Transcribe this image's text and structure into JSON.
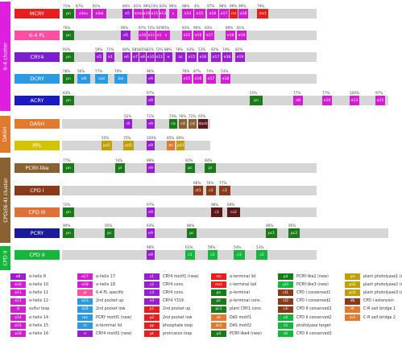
{
  "clusters": [
    {
      "label": "6-4 cluster",
      "color": "#e01ee0",
      "top": 2,
      "height": 136
    },
    {
      "label": "DASH",
      "color": "#e07a2e",
      "top": 144,
      "height": 46
    },
    {
      "label": "CPD/(6-4) cluster",
      "color": "#8a6232",
      "top": 196,
      "height": 106
    },
    {
      "label": "CPD II",
      "color": "#16b53d",
      "top": 306,
      "height": 30
    }
  ],
  "rows": [
    {
      "name": "MCRY",
      "color": "#e81e1e",
      "y": 11,
      "trackX": 77,
      "trackW": 316,
      "motifs": [
        {
          "label": "pn",
          "color": "#1a7a1a",
          "x": 78,
          "w": 14,
          "pct": "71%"
        },
        {
          "label": "e3su",
          "color": "#d01ed0",
          "x": 94,
          "w": 19,
          "pct": "87%"
        },
        {
          "label": "e3al",
          "color": "#d01ed0",
          "x": 115,
          "w": 17,
          "pct": "81%"
        },
        {
          "label": "e5",
          "color": "#9a1ed0",
          "x": 152,
          "w": 12,
          "pct": "84%"
        },
        {
          "label": "nrsn",
          "color": "#d01ed0",
          "x": 166,
          "w": 11,
          "pct": "81%"
        },
        {
          "label": "e10",
          "color": "#d01ed0",
          "x": 178,
          "w": 8,
          "pct": "99%"
        },
        {
          "label": "e11",
          "color": "#d01ed0",
          "x": 187,
          "w": 10,
          "pct": "74%"
        },
        {
          "label": "e12",
          "color": "#d01ed0",
          "x": 198,
          "w": 8,
          "pct": "83%"
        },
        {
          "label": "s",
          "color": "#d01ed0",
          "x": 210,
          "w": 10,
          "pct": "96%"
        },
        {
          "label": "e14",
          "color": "#d01ed0",
          "x": 226,
          "w": 14,
          "pct": "98%"
        },
        {
          "label": "e15",
          "color": "#d01ed0",
          "x": 241,
          "w": 14,
          "pct": "4%"
        },
        {
          "label": "e16",
          "color": "#d01ed0",
          "x": 257,
          "w": 14,
          "pct": "97%"
        },
        {
          "label": "e17",
          "color": "#d01ed0",
          "x": 272,
          "w": 12,
          "pct": "98%"
        },
        {
          "label": "ml",
          "color": "#e81e1e",
          "x": 285,
          "w": 10,
          "pct": "99%"
        },
        {
          "label": "e18",
          "color": "#d01ed0",
          "x": 296,
          "w": 12,
          "pct": "99%"
        },
        {
          "label": "mct",
          "color": "#e81e1e",
          "x": 319,
          "w": 14,
          "pct": "79%"
        }
      ]
    },
    {
      "name": "6-4 PL",
      "color": "#ff4fa3",
      "y": 38,
      "trackX": 77,
      "trackW": 316,
      "motifs": [
        {
          "label": "pn",
          "color": "#1a7a1a",
          "x": 78,
          "w": 14,
          "pct": "76%"
        },
        {
          "label": "e5",
          "color": "#9a1ed0",
          "x": 150,
          "w": 12,
          "pct": "90%"
        },
        {
          "label": "e10",
          "color": "#d01ed0",
          "x": 172,
          "w": 10,
          "pct": "97%"
        },
        {
          "label": "e11",
          "color": "#d01ed0",
          "x": 183,
          "w": 10,
          "pct": "72%"
        },
        {
          "label": "e12",
          "color": "#d01ed0",
          "x": 194,
          "w": 10,
          "pct": "92%"
        },
        {
          "label": "s",
          "color": "#d01ed0",
          "x": 201,
          "w": 10,
          "pct": "75%"
        },
        {
          "label": "e15",
          "color": "#d01ed0",
          "x": 226,
          "w": 12,
          "pct": "93%"
        },
        {
          "label": "e16",
          "color": "#d01ed0",
          "x": 240,
          "w": 12,
          "pct": "96%"
        },
        {
          "label": "e17",
          "color": "#d01ed0",
          "x": 254,
          "w": 12,
          "pct": "93%"
        },
        {
          "label": "e18",
          "color": "#d01ed0",
          "x": 280,
          "w": 12,
          "pct": "89%"
        },
        {
          "label": "e19",
          "color": "#d01ed0",
          "x": 294,
          "w": 12,
          "pct": "81%"
        }
      ]
    },
    {
      "name": "CRY4",
      "color": "#7b1ed0",
      "y": 65,
      "trackX": 77,
      "trackW": 316,
      "motifs": [
        {
          "label": "pn",
          "color": "#1a7a1a",
          "x": 78,
          "w": 14,
          "pct": "91%"
        },
        {
          "label": "e5",
          "color": "#9a1ed0",
          "x": 118,
          "w": 10,
          "pct": "59%"
        },
        {
          "label": "e1",
          "color": "#9a1ed0",
          "x": 132,
          "w": 10,
          "pct": "71%"
        },
        {
          "label": "e6",
          "color": "#9a1ed0",
          "x": 152,
          "w": 10,
          "pct": "84%"
        },
        {
          "label": "e7",
          "color": "#9a1ed0",
          "x": 164,
          "w": 8,
          "pct": "68%"
        },
        {
          "label": "e8",
          "color": "#9a1ed0",
          "x": 173,
          "w": 8,
          "pct": "65%"
        },
        {
          "label": "e10",
          "color": "#9a1ed0",
          "x": 182,
          "w": 10,
          "pct": "81%"
        },
        {
          "label": "e11",
          "color": "#9a1ed0",
          "x": 193,
          "w": 10,
          "pct": "72%"
        },
        {
          "label": "e",
          "color": "#9a1ed0",
          "x": 204,
          "w": 10,
          "pct": "88%"
        },
        {
          "label": "ss",
          "color": "#9a1ed0",
          "x": 218,
          "w": 12,
          "pct": "78%"
        },
        {
          "label": "e15",
          "color": "#9a1ed0",
          "x": 232,
          "w": 12,
          "pct": "63%"
        },
        {
          "label": "e16",
          "color": "#9a1ed0",
          "x": 246,
          "w": 12,
          "pct": "53%"
        },
        {
          "label": "e17",
          "color": "#9a1ed0",
          "x": 262,
          "w": 12,
          "pct": "92%"
        },
        {
          "label": "e18",
          "color": "#9a1ed0",
          "x": 276,
          "w": 12,
          "pct": "74%"
        },
        {
          "label": "e19",
          "color": "#9a1ed0",
          "x": 292,
          "w": 12,
          "pct": "81%"
        }
      ]
    },
    {
      "name": "DCRY",
      "color": "#2c9ae0",
      "y": 92,
      "trackX": 77,
      "trackW": 316,
      "motifs": [
        {
          "label": "pn",
          "color": "#1a7a1a",
          "x": 78,
          "w": 14,
          "pct": "78%"
        },
        {
          "label": "sdl",
          "color": "#2c9ae0",
          "x": 96,
          "w": 16,
          "pct": "56%"
        },
        {
          "label": "ssd",
          "color": "#2c9ae0",
          "x": 118,
          "w": 16,
          "pct": "77%"
        },
        {
          "label": "bsl",
          "color": "#2c9ae0",
          "x": 142,
          "w": 16,
          "pct": "70%"
        },
        {
          "label": "e9",
          "color": "#9a1ed0",
          "x": 182,
          "w": 10,
          "pct": "96%"
        },
        {
          "label": "e15",
          "color": "#d01ed0",
          "x": 226,
          "w": 12,
          "pct": "76%"
        },
        {
          "label": "e16",
          "color": "#d01ed0",
          "x": 240,
          "w": 12,
          "pct": "87%"
        },
        {
          "label": "e17",
          "color": "#d01ed0",
          "x": 256,
          "w": 12,
          "pct": "74%"
        },
        {
          "label": "e18",
          "color": "#d01ed0",
          "x": 274,
          "w": 12,
          "pct": "53%"
        }
      ]
    },
    {
      "name": "ACRY",
      "color": "#1a1ac0",
      "y": 119,
      "trackX": 77,
      "trackW": 405,
      "motifs": [
        {
          "label": "pn",
          "color": "#1a7a1a",
          "x": 78,
          "w": 14,
          "pct": "63%"
        },
        {
          "label": "e9",
          "color": "#9a1ed0",
          "x": 182,
          "w": 10,
          "pct": "97%"
        },
        {
          "label": "pn",
          "color": "#1a7a1a",
          "x": 310,
          "w": 16,
          "pct": "55%"
        },
        {
          "label": "e8",
          "color": "#d01ed0",
          "x": 364,
          "w": 12,
          "pct": "77%"
        },
        {
          "label": "e10",
          "color": "#d01ed0",
          "x": 400,
          "w": 12,
          "pct": "77%"
        },
        {
          "label": "e13",
          "color": "#d01ed0",
          "x": 434,
          "w": 12,
          "pct": "100%"
        },
        {
          "label": "e15",
          "color": "#d01ed0",
          "x": 466,
          "w": 12,
          "pct": "97%"
        }
      ]
    },
    {
      "name": "DASH",
      "color": "#e07a2e",
      "y": 148,
      "trackX": 77,
      "trackW": 184,
      "motifs": [
        {
          "label": "dl",
          "color": "#9a1ed0",
          "x": 154,
          "w": 10,
          "pct": "52%"
        },
        {
          "label": "e9",
          "color": "#9a1ed0",
          "x": 182,
          "w": 10,
          "pct": "71%"
        },
        {
          "label": "ca",
          "color": "#1a7a1a",
          "x": 210,
          "w": 10,
          "pct": "73%"
        },
        {
          "label": "cd",
          "color": "#8a6232",
          "x": 222,
          "w": 10,
          "pct": "76%"
        },
        {
          "label": "cd",
          "color": "#8a6232",
          "x": 234,
          "w": 10,
          "pct": "72%"
        },
        {
          "label": "dash",
          "color": "#5a1a1a",
          "x": 246,
          "w": 12,
          "pct": "65%"
        }
      ]
    },
    {
      "name": "PPL",
      "color": "#d4c400",
      "y": 175,
      "trackX": 77,
      "trackW": 184,
      "motifs": [
        {
          "label": "pd1",
          "color": "#c0a000",
          "x": 126,
          "w": 13,
          "pct": "55%"
        },
        {
          "label": "pd2",
          "color": "#c0a000",
          "x": 153,
          "w": 13,
          "pct": "75%"
        },
        {
          "label": "e9",
          "color": "#9a1ed0",
          "x": 182,
          "w": 10,
          "pct": "100%"
        },
        {
          "label": "ds",
          "color": "#e07a2e",
          "x": 207,
          "w": 10,
          "pct": "65%"
        },
        {
          "label": "pd3",
          "color": "#c0a000",
          "x": 219,
          "w": 10,
          "pct": "80%"
        }
      ]
    },
    {
      "name": "PCRY-like",
      "color": "#8a6232",
      "y": 203,
      "trackX": 77,
      "trackW": 316,
      "motifs": [
        {
          "label": "pn",
          "color": "#1a7a1a",
          "x": 78,
          "w": 14,
          "pct": "77%"
        },
        {
          "label": "pl",
          "color": "#1a7a1a",
          "x": 143,
          "w": 12,
          "pct": "74%"
        },
        {
          "label": "e9",
          "color": "#9a1ed0",
          "x": 182,
          "w": 10,
          "pct": "99%"
        },
        {
          "label": "pc",
          "color": "#1a7a1a",
          "x": 230,
          "w": 12,
          "pct": "92%"
        },
        {
          "label": "pl",
          "color": "#1a7a1a",
          "x": 254,
          "w": 14,
          "pct": "94%"
        }
      ]
    },
    {
      "name": "CPD I",
      "color": "#8a3a1a",
      "y": 231,
      "trackX": 77,
      "trackW": 316,
      "motifs": [
        {
          "label": "ct1",
          "color": "#8a3a1a",
          "x": 240,
          "w": 12,
          "pct": "66%"
        },
        {
          "label": "c2",
          "color": "#8a3a1a",
          "x": 256,
          "w": 12,
          "pct": "76%"
        },
        {
          "label": "c3",
          "color": "#8a3a1a",
          "x": 272,
          "w": 14,
          "pct": "77%"
        }
      ]
    },
    {
      "name": "CPD III",
      "color": "#e0703a",
      "y": 258,
      "trackX": 77,
      "trackW": 316,
      "motifs": [
        {
          "label": "pn",
          "color": "#1a7a1a",
          "x": 78,
          "w": 14,
          "pct": "72%"
        },
        {
          "label": "e9",
          "color": "#9a1ed0",
          "x": 182,
          "w": 10,
          "pct": "97%"
        },
        {
          "label": "c3",
          "color": "#5a1a1a",
          "x": 262,
          "w": 14,
          "pct": "96%"
        },
        {
          "label": "cs2",
          "color": "#5a1a1a",
          "x": 282,
          "w": 16,
          "pct": "69%"
        }
      ]
    },
    {
      "name": "PCRY",
      "color": "#1a1a9a",
      "y": 284,
      "trackX": 77,
      "trackW": 405,
      "motifs": [
        {
          "label": "pn",
          "color": "#1a7a1a",
          "x": 78,
          "w": 14,
          "pct": "90%"
        },
        {
          "label": "pc",
          "color": "#1a7a1a",
          "x": 130,
          "w": 12,
          "pct": "95%"
        },
        {
          "label": "e9",
          "color": "#9a1ed0",
          "x": 182,
          "w": 10,
          "pct": "93%"
        },
        {
          "label": "pc",
          "color": "#1a7a1a",
          "x": 232,
          "w": 12,
          "pct": "86%"
        },
        {
          "label": "pc1",
          "color": "#1a7a1a",
          "x": 330,
          "w": 14,
          "pct": "90%"
        },
        {
          "label": "pc2",
          "color": "#1a7a1a",
          "x": 358,
          "w": 14,
          "pct": "95%"
        }
      ]
    },
    {
      "name": "CPD II",
      "color": "#16b53d",
      "y": 311,
      "trackX": 77,
      "trackW": 316,
      "motifs": [
        {
          "label": "e9",
          "color": "#9a1ed0",
          "x": 182,
          "w": 10,
          "pct": "98%"
        },
        {
          "label": "c1",
          "color": "#16b53d",
          "x": 230,
          "w": 12,
          "pct": "61%"
        },
        {
          "label": "c2",
          "color": "#16b53d",
          "x": 258,
          "w": 12,
          "pct": "59%"
        },
        {
          "label": "c3",
          "color": "#16b53d",
          "x": 290,
          "w": 14,
          "pct": "54%"
        },
        {
          "label": "c2",
          "color": "#16b53d",
          "x": 318,
          "w": 14,
          "pct": "53%"
        }
      ]
    }
  ],
  "legend": [
    {
      "code": "e8",
      "color": "#9a1ed0",
      "label": "α-helix 8"
    },
    {
      "code": "e10",
      "color": "#d01ed0",
      "label": "α-helix 10"
    },
    {
      "code": "e11",
      "color": "#d01ed0",
      "label": "α-helix 11"
    },
    {
      "code": "e12",
      "color": "#d01ed0",
      "label": "α-helix 12"
    },
    {
      "code": "sl",
      "color": "#d01ed0",
      "label": "sulfur loop"
    },
    {
      "code": "e14",
      "color": "#d01ed0",
      "label": "α-helix 14"
    },
    {
      "code": "e15",
      "color": "#d01ed0",
      "label": "α-helix 15"
    },
    {
      "code": "e16",
      "color": "#d01ed0",
      "label": "α-helix 16"
    },
    {
      "code": "e17",
      "color": "#d01ed0",
      "label": "α-helix 17"
    },
    {
      "code": "e18",
      "color": "#d01ed0",
      "label": "α-helix 18"
    },
    {
      "code": "pl",
      "color": "#ff4fa3",
      "label": "6-4 PL specific"
    },
    {
      "code": "e23",
      "color": "#2c9ae0",
      "label": "2nd pocket up"
    },
    {
      "code": "e24",
      "color": "#2c9ae0",
      "label": "2nd pocket low"
    },
    {
      "code": "rec",
      "color": "#2c9ae0",
      "label": "PCRY motif1 (new)"
    },
    {
      "code": "ct",
      "color": "#2c9ae0",
      "label": "α-terminal lid"
    },
    {
      "code": "rr",
      "color": "#9a1ed0",
      "label": "CRY4 motif2 (new)"
    },
    {
      "code": "c1",
      "color": "#9a1ed0",
      "label": "CRY4 motif1 (new)"
    },
    {
      "code": "c2",
      "color": "#9a1ed0",
      "label": "CRY4 cons."
    },
    {
      "code": "c3",
      "color": "#9a1ed0",
      "label": "CRY4 cons."
    },
    {
      "code": "e3",
      "color": "#9a1ed0",
      "label": "CRY4 Y319"
    },
    {
      "code": "p1",
      "color": "#e81e1e",
      "label": "2nd pocket up"
    },
    {
      "code": "p2",
      "color": "#e81e1e",
      "label": "2nd pocket low"
    },
    {
      "code": "pp",
      "color": "#e81e1e",
      "label": "phosphate loop"
    },
    {
      "code": "pt",
      "color": "#e81e1e",
      "label": "protrusion loop"
    },
    {
      "code": "mc",
      "color": "#e81e1e",
      "label": "α-terminal lid"
    },
    {
      "code": "mct",
      "color": "#e81e1e",
      "label": "c-terminal tail"
    },
    {
      "code": "pn",
      "color": "#1a7a1a",
      "label": "p-terminal"
    },
    {
      "code": "pc",
      "color": "#1a7a1a",
      "label": "p-terminal cons."
    },
    {
      "code": "pc1",
      "color": "#1a7a1a",
      "label": "plant CRY1 cons."
    },
    {
      "code": "ds",
      "color": "#e07a2e",
      "label": "DAS motif1"
    },
    {
      "code": "ds2",
      "color": "#e07a2e",
      "label": "DAS motif2"
    },
    {
      "code": "p3",
      "color": "#1a7a1a",
      "label": "PCRY-like4 (new)"
    },
    {
      "code": "p4",
      "color": "#1a7a1a",
      "label": "PCRY-like2 (new)"
    },
    {
      "code": "pl3",
      "color": "#16b53d",
      "label": "PCRY-like3 (new)"
    },
    {
      "code": "ct1",
      "color": "#8a3a1a",
      "label": "CPD I conserved1"
    },
    {
      "code": "ct2",
      "color": "#8a3a1a",
      "label": "CPD I conserved2"
    },
    {
      "code": "c3i",
      "color": "#8a3a1a",
      "label": "CPD II conserved1"
    },
    {
      "code": "c4",
      "color": "#16b53d",
      "label": "CPD II conserved2"
    },
    {
      "code": "c5",
      "color": "#16b53d",
      "label": "photolyase target"
    },
    {
      "code": "c6",
      "color": "#16b53d",
      "label": "CPD II conserved3"
    },
    {
      "code": "pd",
      "color": "#c0a000",
      "label": "plant photolyase1 (new)"
    },
    {
      "code": "pd2",
      "color": "#c0a000",
      "label": "plant photolyase2 (new)"
    },
    {
      "code": "pd3",
      "color": "#c0a000",
      "label": "plant photolyase3 (new)"
    },
    {
      "code": "db",
      "color": "#8a3a1a",
      "label": "CPD I extension"
    },
    {
      "code": "dr",
      "color": "#e07a2e",
      "label": "C-R salt bridge 1"
    },
    {
      "code": "dr2",
      "color": "#e07a2e",
      "label": "C-R salt bridge 2"
    }
  ]
}
